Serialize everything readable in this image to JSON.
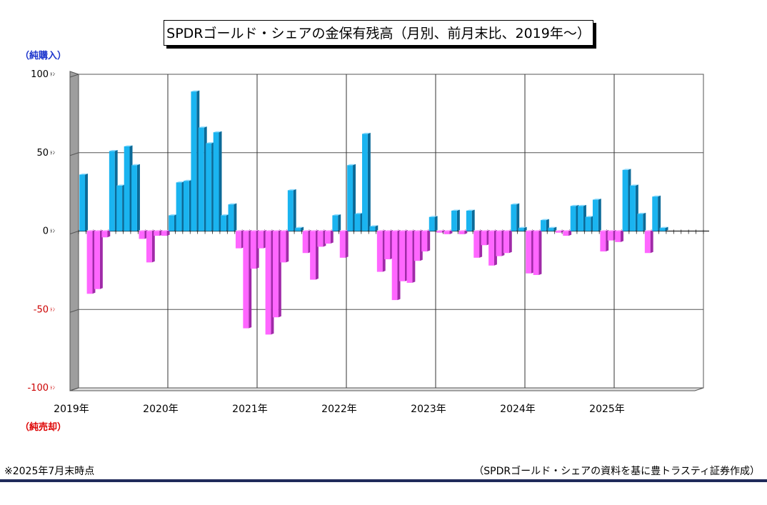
{
  "chart_data": {
    "type": "bar",
    "title": "SPDRゴールド・シェアの金保有残高（月別、前月末比、2019年～）",
    "y_unit": "ﾄﾝ",
    "ylim": [
      -100,
      100
    ],
    "y_ticks": [
      {
        "value": 100,
        "label": "100",
        "color": "#000000"
      },
      {
        "value": 50,
        "label": "50",
        "color": "#000000"
      },
      {
        "value": 0,
        "label": "0",
        "color": "#000000"
      },
      {
        "value": -50,
        "label": "-50",
        "color": "#cc0000"
      },
      {
        "value": -100,
        "label": "-100",
        "color": "#cc0000"
      }
    ],
    "year_labels": [
      "2019年",
      "2020年",
      "2021年",
      "2022年",
      "2023年",
      "2024年",
      "2025年"
    ],
    "start": "2019-01",
    "months": 84,
    "values": [
      36,
      -40,
      -37,
      -4,
      51,
      29,
      54,
      42,
      -5,
      -20,
      -3,
      -3,
      10,
      31,
      32,
      89,
      66,
      56,
      63,
      10,
      17,
      -11,
      -62,
      -24,
      -11,
      -66,
      -55,
      -20,
      26,
      2,
      -14,
      -31,
      -10,
      -8,
      10,
      -17,
      42,
      11,
      62,
      3,
      -26,
      -18,
      -44,
      -32,
      -33,
      -19,
      -13,
      9,
      -1,
      -2,
      13,
      -2,
      13,
      -17,
      -9,
      -22,
      -16,
      -14,
      17,
      2,
      -27,
      -28,
      7,
      2,
      -1,
      -3,
      16,
      16,
      9,
      20,
      -13,
      -6,
      -7,
      39,
      29,
      11,
      -14,
      22,
      2
    ],
    "grid": true,
    "colors": {
      "positive": "#1ab4f0",
      "negative": "#ff66ff",
      "grid": "#555555"
    }
  },
  "labels": {
    "buy": "（純購入）",
    "sell": "（純売却）",
    "buy_color": "#1a33cc",
    "sell_color": "#dd0000"
  },
  "notes": {
    "as_of": "※2025年7月末時点",
    "source": "（SPDRゴールド・シェアの資料を基に豊トラスティ証券作成）"
  }
}
